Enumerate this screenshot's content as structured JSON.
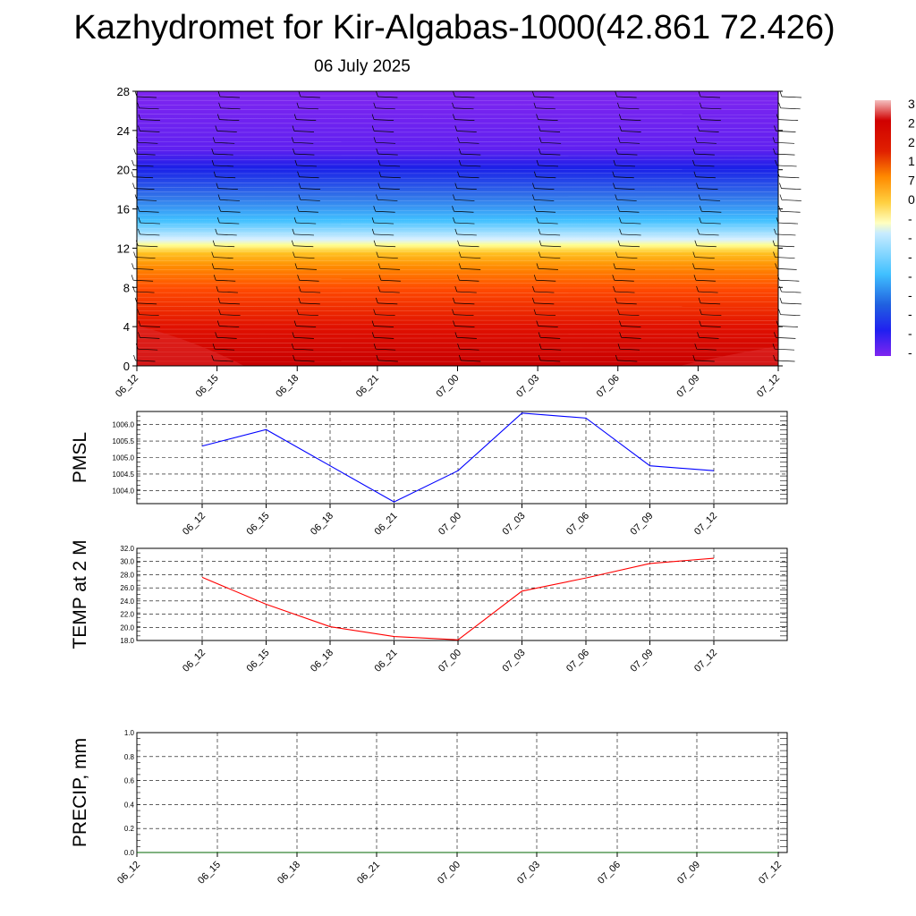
{
  "header": {
    "title": "Kazhydromet for Kir-Algabas-1000(42.861 72.426)",
    "subtitle": "06 July 2025"
  },
  "colors": {
    "pmsl_line": "#0000ff",
    "temp_line": "#ff0000",
    "precip_line": "#006400",
    "contour_top": "#7f25f0",
    "contour_mid": "#ffffc0",
    "contour_bottom": "#d40000"
  },
  "chart_data": [
    {
      "type": "heatmap",
      "name": "cross-section",
      "x_categories": [
        "06_12",
        "06_15",
        "06_18",
        "06_21",
        "07_00",
        "07_03",
        "07_06",
        "07_09",
        "07_12"
      ],
      "y_ticks": [
        0,
        4,
        8,
        12,
        16,
        20,
        24,
        28
      ],
      "ylim": [
        0,
        28
      ],
      "colorbar_visible_labels": [
        "3",
        "2",
        "2",
        "1",
        "7",
        "0",
        "-",
        "-",
        "-",
        "-",
        "-",
        "-",
        "-",
        "-"
      ],
      "colorbar_colors": [
        "#f4c0c0",
        "#e04a4a",
        "#d00000",
        "#e02000",
        "#ff6000",
        "#ff9a10",
        "#ffd040",
        "#ffffc0",
        "#c8ecff",
        "#40c0ff",
        "#3090e8",
        "#2060e0",
        "#2030f0",
        "#6020f0"
      ],
      "wind_barbs": true
    },
    {
      "type": "line",
      "name": "pmsl",
      "ylabel": "PMSL",
      "categories": [
        "06_12",
        "06_15",
        "06_18",
        "06_21",
        "07_00",
        "07_03",
        "07_06",
        "07_09",
        "07_12"
      ],
      "values": [
        1005.35,
        1005.85,
        1004.75,
        1003.65,
        1004.6,
        1006.35,
        1006.2,
        1004.75,
        1004.6
      ],
      "y_ticks": [
        "1004.0",
        "1004.5",
        "1005.0",
        "1005.5",
        "1006.0"
      ],
      "ylim": [
        1003.6,
        1006.4
      ],
      "grid": true
    },
    {
      "type": "line",
      "name": "temp",
      "ylabel": "TEMP at 2 M",
      "categories": [
        "06_12",
        "06_15",
        "06_18",
        "06_21",
        "07_00",
        "07_03",
        "07_06",
        "07_09",
        "07_12"
      ],
      "values": [
        27.6,
        23.5,
        20.1,
        18.6,
        18.1,
        25.5,
        27.5,
        29.7,
        30.5
      ],
      "y_ticks": [
        "18.0",
        "20.0",
        "22.0",
        "24.0",
        "26.0",
        "28.0",
        "30.0",
        "32.0"
      ],
      "ylim": [
        18,
        32
      ],
      "grid": true
    },
    {
      "type": "line",
      "name": "precip",
      "ylabel": "PRECIP, mm",
      "categories": [
        "06_12",
        "06_15",
        "06_18",
        "06_21",
        "07_00",
        "07_03",
        "07_06",
        "07_09",
        "07_12"
      ],
      "values": [
        0,
        0,
        0,
        0,
        0,
        0,
        0,
        0,
        0
      ],
      "y_ticks": [
        "0.0",
        "0.2",
        "0.4",
        "0.6",
        "0.8",
        "1.0"
      ],
      "ylim": [
        0,
        1
      ],
      "grid": true
    }
  ]
}
